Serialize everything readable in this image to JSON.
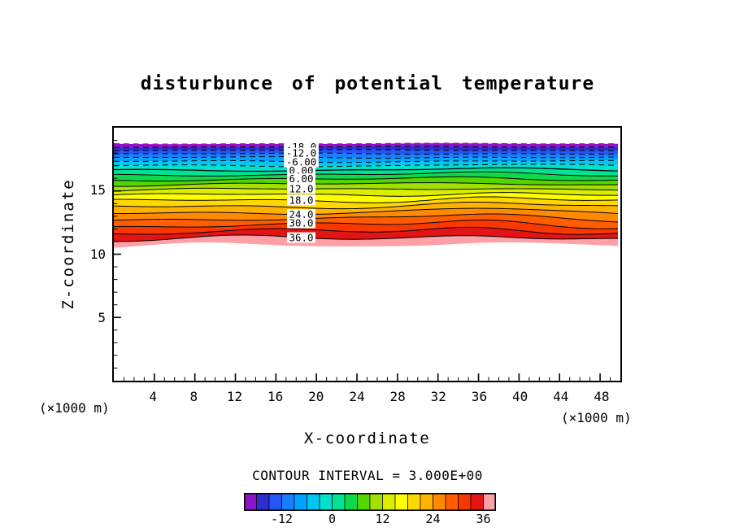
{
  "chart_data": {
    "type": "contour",
    "title": "disturbunce of potential temperature",
    "xlabel": "X-coordinate",
    "ylabel": "Z-coordinate",
    "x_units_left": "(×1000 m)",
    "x_units_right": "(×1000 m)",
    "contour_interval_label": "CONTOUR INTERVAL = 3.000E+00",
    "contour_interval": 3.0,
    "xlim": [
      0,
      50
    ],
    "ylim": [
      0,
      20
    ],
    "x_ticks": [
      4,
      8,
      12,
      16,
      20,
      24,
      28,
      32,
      36,
      40,
      44,
      48
    ],
    "y_ticks": [
      5,
      10,
      15
    ],
    "line_style": {
      "negative_levels": "dashed",
      "zero_and_positive_levels": "solid",
      "outermost_line_color": "#c000c8"
    },
    "field_note": "Horizontally layered disturbance filling z≈10–20 km; values increase downward from about -21 at the top of the box to about +39 at z≈10 km; field is blank (white) below z≈10 km.",
    "labeled_levels": [
      {
        "level": -18,
        "text": "-18.0"
      },
      {
        "level": -12,
        "text": "-12.0"
      },
      {
        "level": -6,
        "text": "-6.00"
      },
      {
        "level": 0,
        "text": "0.00"
      },
      {
        "level": 6,
        "text": "6.00"
      },
      {
        "level": 12,
        "text": "12.0"
      },
      {
        "level": 18,
        "text": "18.0"
      },
      {
        "level": 24,
        "text": "24.0"
      },
      {
        "level": 30,
        "text": "30.0"
      },
      {
        "level": 36,
        "text": "36.0"
      }
    ],
    "bands": [
      {
        "from": -21,
        "to": -18,
        "color": "#8a14c8"
      },
      {
        "from": -18,
        "to": -15,
        "color": "#2d2dd2"
      },
      {
        "from": -15,
        "to": -12,
        "color": "#2256f5"
      },
      {
        "from": -12,
        "to": -9,
        "color": "#1a7dff"
      },
      {
        "from": -9,
        "to": -6,
        "color": "#00a3ff"
      },
      {
        "from": -6,
        "to": -3,
        "color": "#00c7f0"
      },
      {
        "from": -3,
        "to": 0,
        "color": "#00e0cf"
      },
      {
        "from": 0,
        "to": 3,
        "color": "#00e293"
      },
      {
        "from": 3,
        "to": 6,
        "color": "#0fd94a"
      },
      {
        "from": 6,
        "to": 9,
        "color": "#55d400"
      },
      {
        "from": 9,
        "to": 12,
        "color": "#a3e000"
      },
      {
        "from": 12,
        "to": 15,
        "color": "#dcee00"
      },
      {
        "from": 15,
        "to": 18,
        "color": "#ffff00"
      },
      {
        "from": 18,
        "to": 21,
        "color": "#ffd800"
      },
      {
        "from": 21,
        "to": 24,
        "color": "#ffb300"
      },
      {
        "from": 24,
        "to": 27,
        "color": "#ff8a00"
      },
      {
        "from": 27,
        "to": 30,
        "color": "#ff5e00"
      },
      {
        "from": 30,
        "to": 33,
        "color": "#f93800"
      },
      {
        "from": 33,
        "to": 36,
        "color": "#e51414"
      },
      {
        "from": 36,
        "to": 39,
        "color": "#ff9fa6"
      }
    ],
    "colorbar": {
      "min": -21,
      "max": 39,
      "tick_labels": [
        {
          "value": -12,
          "text": "-12"
        },
        {
          "value": 0,
          "text": "0"
        },
        {
          "value": 12,
          "text": "12"
        },
        {
          "value": 24,
          "text": "24"
        },
        {
          "value": 36,
          "text": "36"
        }
      ]
    }
  }
}
